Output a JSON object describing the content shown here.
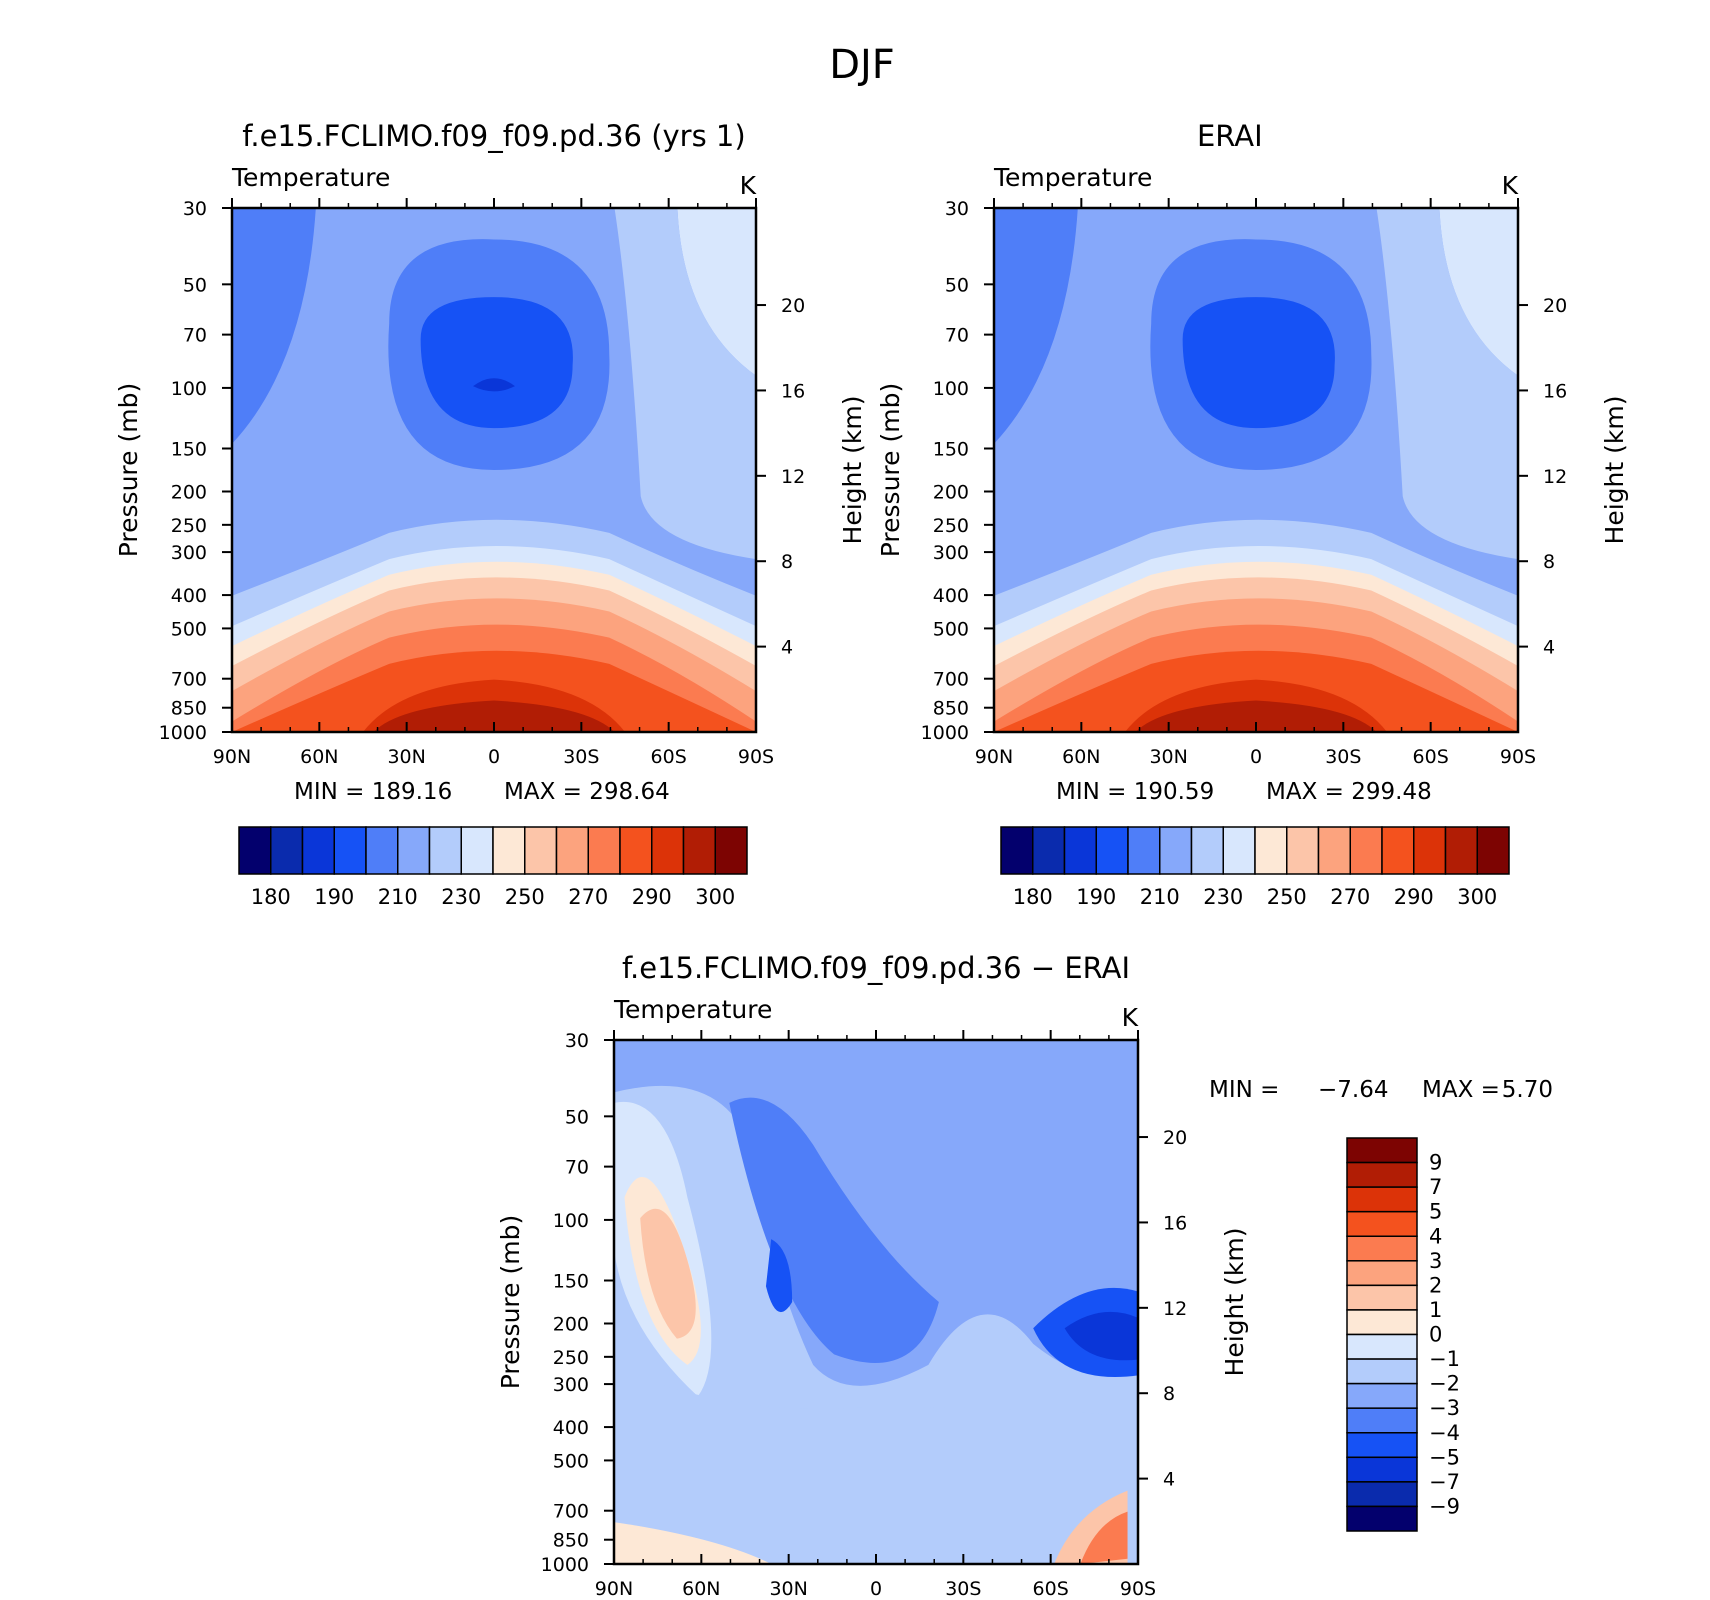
{
  "figure": {
    "title": "DJF"
  },
  "chart_data": [
    {
      "type": "heatmap",
      "title": "f.e15.FCLIMO.f09_f09.pd.36 (yrs 1)",
      "variable": "Temperature",
      "units": "K",
      "xlabel": "",
      "ylabel": "Pressure (mb)",
      "y2label": "Height (km)",
      "x_ticks": [
        "90N",
        "60N",
        "30N",
        "0",
        "30S",
        "60S",
        "90S"
      ],
      "y_ticks": [
        "30",
        "50",
        "70",
        "100",
        "150",
        "200",
        "250",
        "300",
        "400",
        "500",
        "700",
        "850",
        "1000"
      ],
      "y2_ticks": [
        "20",
        "16",
        "12",
        "8",
        "4"
      ],
      "min_label": "MIN = 189.16",
      "max_label": "MAX = 298.64",
      "min": 189.16,
      "max": 298.64,
      "levels": [
        180,
        185,
        190,
        200,
        210,
        220,
        230,
        240,
        250,
        260,
        270,
        280,
        290,
        295,
        300
      ],
      "colorbar_labels": [
        "180",
        "190",
        "210",
        "230",
        "250",
        "270",
        "290",
        "300"
      ],
      "colorbar_colors": [
        "#03006d",
        "#0a2bad",
        "#0a36d8",
        "#1652f5",
        "#4f7ef8",
        "#86a8fa",
        "#b3ccfb",
        "#d8e7fd",
        "#fde8d6",
        "#fcc5a9",
        "#fca37e",
        "#fb7b50",
        "#f4521e",
        "#dc3308",
        "#b11d05",
        "#7d0402"
      ]
    },
    {
      "type": "heatmap",
      "title": "ERAI",
      "variable": "Temperature",
      "units": "K",
      "xlabel": "",
      "ylabel": "Pressure (mb)",
      "y2label": "Height (km)",
      "x_ticks": [
        "90N",
        "60N",
        "30N",
        "0",
        "30S",
        "60S",
        "90S"
      ],
      "y_ticks": [
        "30",
        "50",
        "70",
        "100",
        "150",
        "200",
        "250",
        "300",
        "400",
        "500",
        "700",
        "850",
        "1000"
      ],
      "y2_ticks": [
        "20",
        "16",
        "12",
        "8",
        "4"
      ],
      "min_label": "MIN = 190.59",
      "max_label": "MAX = 299.48",
      "min": 190.59,
      "max": 299.48,
      "levels": [
        180,
        185,
        190,
        200,
        210,
        220,
        230,
        240,
        250,
        260,
        270,
        280,
        290,
        295,
        300
      ],
      "colorbar_labels": [
        "180",
        "190",
        "210",
        "230",
        "250",
        "270",
        "290",
        "300"
      ],
      "colorbar_colors": [
        "#03006d",
        "#0a2bad",
        "#0a36d8",
        "#1652f5",
        "#4f7ef8",
        "#86a8fa",
        "#b3ccfb",
        "#d8e7fd",
        "#fde8d6",
        "#fcc5a9",
        "#fca37e",
        "#fb7b50",
        "#f4521e",
        "#dc3308",
        "#b11d05",
        "#7d0402"
      ]
    },
    {
      "type": "heatmap",
      "title": "f.e15.FCLIMO.f09_f09.pd.36 − ERAI",
      "variable": "Temperature",
      "units": "K",
      "xlabel": "",
      "ylabel": "Pressure (mb)",
      "y2label": "Height (km)",
      "x_ticks": [
        "90N",
        "60N",
        "30N",
        "0",
        "30S",
        "60S",
        "90S"
      ],
      "y_ticks": [
        "30",
        "50",
        "70",
        "100",
        "150",
        "200",
        "250",
        "300",
        "400",
        "500",
        "700",
        "850",
        "1000"
      ],
      "y2_ticks": [
        "20",
        "16",
        "12",
        "8",
        "4"
      ],
      "min_label": "MIN =",
      "min_value": "−7.64",
      "max_label": "MAX =",
      "max_value": "5.70",
      "min": -7.64,
      "max": 5.7,
      "levels": [
        -9,
        -7,
        -5,
        -4,
        -3,
        -2,
        -1,
        0,
        1,
        2,
        3,
        4,
        5,
        7,
        9
      ],
      "colorbar_labels": [
        "9",
        "7",
        "5",
        "4",
        "3",
        "2",
        "1",
        "0",
        "−1",
        "−2",
        "−3",
        "−4",
        "−5",
        "−7",
        "−9"
      ],
      "colorbar_colors": [
        "#7d0402",
        "#b11d05",
        "#dc3308",
        "#f4521e",
        "#fb7b50",
        "#fca37e",
        "#fcc5a9",
        "#fde8d6",
        "#d8e7fd",
        "#b3ccfb",
        "#86a8fa",
        "#4f7ef8",
        "#1652f5",
        "#0a36d8",
        "#0a2bad",
        "#03006d"
      ]
    }
  ]
}
